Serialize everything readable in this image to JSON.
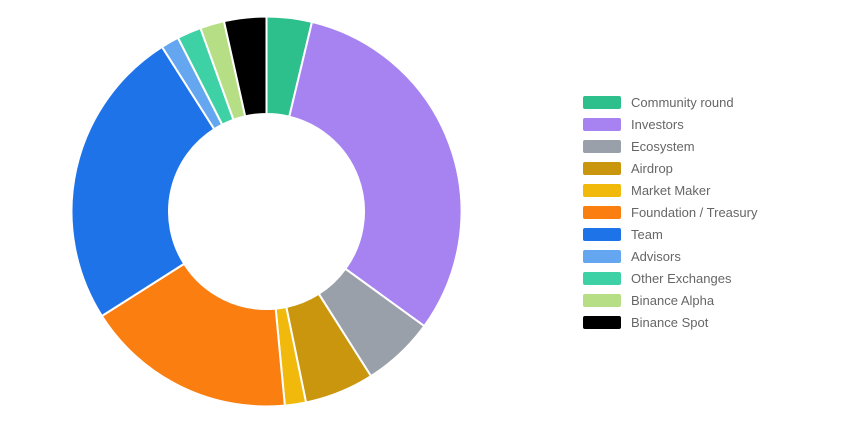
{
  "chart_data": {
    "type": "pie",
    "variant": "doughnut",
    "title": "",
    "labels": [
      "Community round",
      "Investors",
      "Ecosystem",
      "Airdrop",
      "Market Maker",
      "Foundation / Treasury",
      "Team",
      "Advisors",
      "Other Exchanges",
      "Binance Alpha",
      "Binance Spot"
    ],
    "values": [
      3.75,
      31.25,
      6,
      5.75,
      1.75,
      17.5,
      25,
      1.5,
      2,
      2,
      3.5
    ],
    "unit": "%",
    "colors": [
      "#2EC08C",
      "#A783F1",
      "#9AA0A9",
      "#C9960E",
      "#F0B90B",
      "#FB7E11",
      "#1F73E8",
      "#64A6F0",
      "#3ED1A5",
      "#B6DF85",
      "#000000"
    ],
    "start_angle_deg": 0,
    "clockwise": true,
    "donut_hole_ratio": 0.5,
    "slice_border_color": "#FFFFFF",
    "slice_border_width": 2,
    "legend_position": "right",
    "legend_text_color": "#666666",
    "background_color": "#FFFFFF"
  }
}
